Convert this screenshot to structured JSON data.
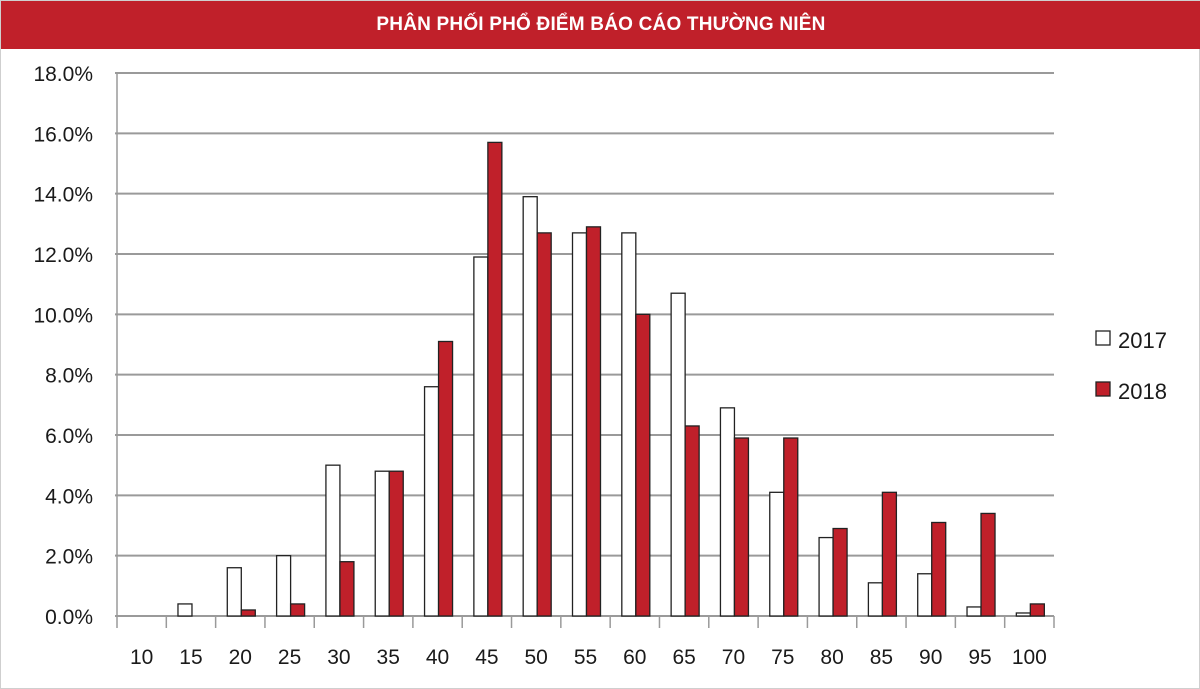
{
  "colors": {
    "title_bg": "#c0202a",
    "title_text": "#ffffff",
    "series_2017": "#ffffff",
    "series_2018": "#c0202a",
    "bar_stroke": "#222222",
    "grid": "#9a9a9a"
  },
  "chart_data": {
    "type": "bar",
    "title": "PHÂN PHỐI PHỔ ĐIỂM BÁO CÁO THƯỜNG NIÊN",
    "xlabel": "",
    "ylabel": "",
    "ylim": [
      0,
      18
    ],
    "y_tick_step": 2,
    "y_tick_labels": [
      "0.0%",
      "2.0%",
      "4.0%",
      "6.0%",
      "8.0%",
      "10.0%",
      "12.0%",
      "14.0%",
      "16.0%",
      "18.0%"
    ],
    "grid": true,
    "legend_position": "right",
    "categories": [
      "10",
      "15",
      "20",
      "25",
      "30",
      "35",
      "40",
      "45",
      "50",
      "55",
      "60",
      "65",
      "70",
      "75",
      "80",
      "85",
      "90",
      "95",
      "100"
    ],
    "series": [
      {
        "name": "2017",
        "values": [
          0.0,
          0.4,
          1.6,
          2.0,
          5.0,
          4.8,
          7.6,
          11.9,
          13.9,
          12.7,
          12.7,
          10.7,
          6.9,
          4.1,
          2.6,
          1.1,
          1.4,
          0.3,
          0.1
        ]
      },
      {
        "name": "2018",
        "values": [
          0.0,
          0.0,
          0.2,
          0.4,
          1.8,
          4.8,
          9.1,
          15.7,
          12.7,
          12.9,
          10.0,
          6.3,
          5.9,
          5.9,
          2.9,
          4.1,
          3.1,
          3.4,
          0.4
        ]
      }
    ]
  }
}
